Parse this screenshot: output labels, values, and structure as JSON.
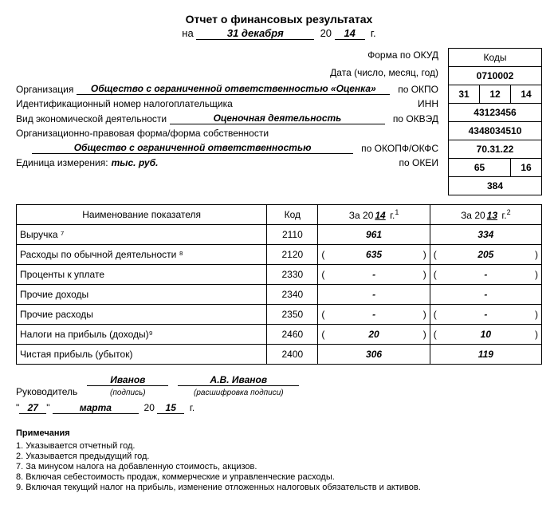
{
  "title": "Отчет о финансовых результатах",
  "subtitle_prefix": "на",
  "date_day_month": "31 декабря",
  "century": "20",
  "year2": "14",
  "year_suffix": "г.",
  "codes_header": "Коды",
  "labels": {
    "form_okud": "Форма по ОКУД",
    "date": "Дата (число, месяц, год)",
    "org": "Организация",
    "po_okpo": "по ОКПО",
    "inn": "Идентификационный номер налогоплательщика",
    "inn_code": "ИНН",
    "activity": "Вид экономической деятельности",
    "po_okved": "по ОКВЭД",
    "legal_form": "Организационно-правовая форма/форма собственности",
    "po_okopf": "по ОКОПФ/ОКФС",
    "unit": "Единица измерения:",
    "po_okei": "по ОКЕИ"
  },
  "org_name": "Общество с ограниченной ответственностью «Оценка»",
  "activity_name": "Оценочная деятельность",
  "legal_form_name": "Общество с ограниченной ответственностью",
  "unit_value": "тыс. руб.",
  "codes": {
    "okud": "0710002",
    "date_d": "31",
    "date_m": "12",
    "date_y": "14",
    "okpo": "43123456",
    "inn": "4348034510",
    "okved": "70.31.22",
    "okopf": "65",
    "okfs": "16",
    "okei": "384"
  },
  "table": {
    "headers": {
      "name": "Наименование показателя",
      "code": "Код",
      "period_prefix": "За 20",
      "year_cur": "14",
      "year_prev": "13",
      "period_suffix": "г."
    },
    "rows": [
      {
        "name": "Выручка ⁷",
        "code": "2110",
        "cur": "961",
        "prev": "334",
        "paren": false
      },
      {
        "name": "Расходы по обычной деятельности ⁸",
        "code": "2120",
        "cur": "635",
        "prev": "205",
        "paren": true
      },
      {
        "name": "Проценты к уплате",
        "code": "2330",
        "cur": "-",
        "prev": "-",
        "paren": true
      },
      {
        "name": "Прочие доходы",
        "code": "2340",
        "cur": "-",
        "prev": "-",
        "paren": false
      },
      {
        "name": "Прочие расходы",
        "code": "2350",
        "cur": "-",
        "prev": "-",
        "paren": true
      },
      {
        "name": "Налоги на прибыль (доходы)⁹",
        "code": "2460",
        "cur": "20",
        "prev": "10",
        "paren": true
      },
      {
        "name": "Чистая прибыль (убыток)",
        "code": "2400",
        "cur": "306",
        "prev": "119",
        "paren": false
      }
    ]
  },
  "sign": {
    "role": "Руководитель",
    "signature": "Иванов",
    "signature_sub": "(подпись)",
    "name": "А.В. Иванов",
    "name_sub": "(расшифровка подписи)",
    "day": "27",
    "month": "марта",
    "year2": "15"
  },
  "notes": {
    "header": "Примечания",
    "items": [
      "1. Указывается отчетный год.",
      "2. Указывается предыдущий год.",
      "7. За минусом налога на добавленную стоимость, акцизов.",
      "8. Включая себестоимость продаж, коммерческие и управленческие расходы.",
      "9. Включая текущий налог на прибыль, изменение отложенных налоговых обязательств и активов."
    ]
  }
}
